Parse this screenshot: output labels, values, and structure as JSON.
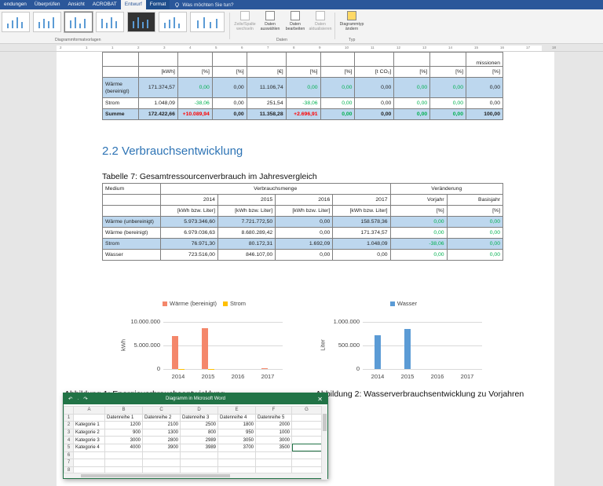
{
  "ribbon_tabs": [
    {
      "label": "endungen",
      "active": false
    },
    {
      "label": "Überprüfen",
      "active": false
    },
    {
      "label": "Ansicht",
      "active": false
    },
    {
      "label": "ACROBAT",
      "active": false
    },
    {
      "label": "Entwurf",
      "active": true
    },
    {
      "label": "Format",
      "active": false
    }
  ],
  "tell_me": "Was möchten Sie tun?",
  "ribbon": {
    "styles_group_label": "Diagrammformatvorlagen",
    "data_group_label": "Daten",
    "type_group_label": "Typ",
    "buttons": [
      {
        "label": "Zeile/Spalte wechseln",
        "icon": "switch-row-column-icon",
        "enabled": false
      },
      {
        "label": "Daten auswählen",
        "icon": "select-data-icon",
        "enabled": true
      },
      {
        "label": "Daten bearbeiten",
        "icon": "edit-data-icon",
        "enabled": true
      },
      {
        "label": "Daten aktualisieren",
        "icon": "refresh-data-icon",
        "enabled": false
      },
      {
        "label": "Diagrammtyp ändern",
        "icon": "chart-type-icon",
        "enabled": true
      }
    ]
  },
  "ruler_ticks": [
    "2",
    "1",
    "1",
    "2",
    "3",
    "4",
    "5",
    "6",
    "7",
    "8",
    "9",
    "10",
    "11",
    "12",
    "13",
    "14",
    "15",
    "16",
    "17",
    "18"
  ],
  "table6": {
    "header_frag": [
      "missionen"
    ],
    "units": [
      "",
      "[kWh]",
      "[%]",
      "[%]",
      "[€]",
      "[%]",
      "[%]",
      "[t CO₂]",
      "[%]",
      "[%]",
      "[%]"
    ],
    "rows": [
      {
        "label": "Wärme (bereinigt)",
        "values": [
          "171.374,57",
          "0,00",
          "0,00",
          "11.106,74",
          "0,00",
          "0,00",
          "0,00",
          "0,00",
          "0,00",
          "0,00"
        ],
        "style": "blue"
      },
      {
        "label": "Strom",
        "values": [
          "1.048,09",
          "-38,06",
          "0,00",
          "251,54",
          "-38,06",
          "0,00",
          "0,00",
          "0,00",
          "0,00",
          "0,00"
        ],
        "style": "white"
      },
      {
        "label": "Summe",
        "values": [
          "172.422,66",
          "+10.089,94",
          "0,00",
          "11.358,28",
          "+2.696,91",
          "0,00",
          "0,00",
          "0,00",
          "0,00",
          "100,00"
        ],
        "style": "sum"
      }
    ]
  },
  "heading": "2.2 Verbrauchsentwicklung",
  "table7": {
    "caption": "Tabelle 7: Gesamtressourcenverbrauch im Jahresvergleich",
    "col_medium": "Medium",
    "col_verbrauch": "Verbrauchsmenge",
    "col_veraenderung": "Veränderung",
    "years": [
      "2014",
      "2015",
      "2016",
      "2017"
    ],
    "vorjahr": "Vorjahr",
    "basisjahr": "Basisjahr",
    "unit": "[kWh bzw. Liter]",
    "pct": "[%]",
    "rows": [
      {
        "label": "Wärme (unbereinigt)",
        "values": [
          "5.973.346,60",
          "7.721.772,50",
          "0,00",
          "158.578,36"
        ],
        "vorjahr": "0,00",
        "basisjahr": "0,00",
        "blue": true
      },
      {
        "label": "Wärme (bereinigt)",
        "values": [
          "6.979.036,63",
          "8.680.289,42",
          "0,00",
          "171.374,57"
        ],
        "vorjahr": "0,00",
        "basisjahr": "0,00",
        "blue": false
      },
      {
        "label": "Strom",
        "values": [
          "76.971,30",
          "80.172,31",
          "1.692,09",
          "1.048,09"
        ],
        "vorjahr": "-38,06",
        "basisjahr": "0,00",
        "blue": true
      },
      {
        "label": "Wasser",
        "values": [
          "723.516,00",
          "846.107,00",
          "0,00",
          "0,00"
        ],
        "vorjahr": "0,00",
        "basisjahr": "0,00",
        "blue": false
      }
    ]
  },
  "chart_data": [
    {
      "type": "bar",
      "categories": [
        "2014",
        "2015",
        "2016",
        "2017"
      ],
      "series": [
        {
          "name": "Wärme (bereinigt)",
          "color": "#f4876b",
          "values": [
            6979036.63,
            8680289.42,
            0,
            171374.57
          ]
        },
        {
          "name": "Strom",
          "color": "#ffc000",
          "values": [
            76971.3,
            80172.31,
            1692.09,
            1048.09
          ]
        }
      ],
      "yticks": [
        "0",
        "5.000.000",
        "10.000.000"
      ],
      "ylim": [
        0,
        10000000
      ],
      "ylabel": "kWh",
      "legend": "top"
    },
    {
      "type": "bar",
      "categories": [
        "2014",
        "2015",
        "2016",
        "2017"
      ],
      "series": [
        {
          "name": "Wasser",
          "color": "#5b9bd5",
          "values": [
            723516,
            846107,
            0,
            0
          ]
        }
      ],
      "yticks": [
        "0",
        "500.000",
        "1.000.000"
      ],
      "ylim": [
        0,
        1000000
      ],
      "ylabel": "Liter",
      "legend": "top"
    }
  ],
  "chart_captions": [
    "Abbildung 1: Energieverbrauchsentwicklung",
    "Abbildung 2: Wasserverbrauchsentwicklung zu Vorjahren"
  ],
  "excel": {
    "title": "Diagramm in Microsoft Word",
    "quick_access": "↶ · ↷",
    "columns": [
      "",
      "A",
      "B",
      "C",
      "D",
      "E",
      "F",
      "G"
    ],
    "header_row": [
      "",
      "Datenreihe 1",
      "Datenreihe 2",
      "Datenreihe 3",
      "Datenreihe 4",
      "Datenreihe 5",
      ""
    ],
    "rows": [
      [
        "Kategorie 1",
        "1200",
        "2100",
        "2500",
        "1800",
        "2000",
        ""
      ],
      [
        "Kategorie 2",
        "900",
        "1300",
        "800",
        "950",
        "1000",
        ""
      ],
      [
        "Kategorie 3",
        "3000",
        "2800",
        "2989",
        "3050",
        "3000",
        ""
      ],
      [
        "Kategorie 4",
        "4000",
        "3900",
        "3989",
        "3700",
        "3500",
        ""
      ],
      [
        "",
        "",
        "",
        "",
        "",
        "",
        ""
      ],
      [
        "",
        "",
        "",
        "",
        "",
        "",
        ""
      ],
      [
        "",
        "",
        "",
        "",
        "",
        "",
        ""
      ]
    ],
    "row_numbers": [
      "1",
      "2",
      "3",
      "4",
      "5",
      "6",
      "7",
      "8"
    ]
  }
}
